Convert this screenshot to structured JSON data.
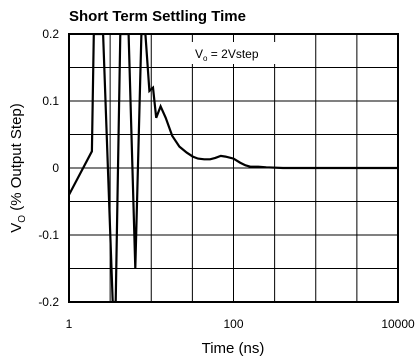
{
  "chart_data": {
    "type": "line",
    "title": "Short Term Settling Time",
    "xlabel": "Time (ns)",
    "ylabel_main": "V",
    "ylabel_sub": "O",
    "ylabel_rest": " (% Output Step)",
    "x_scale": "log",
    "xlim": [
      1,
      10000
    ],
    "ylim": [
      -0.2,
      0.2
    ],
    "x_ticks": [
      1,
      100,
      10000
    ],
    "x_tick_labels": [
      "1",
      "100",
      "10000"
    ],
    "y_ticks": [
      0.2,
      0.1,
      0,
      -0.1,
      -0.2
    ],
    "y_tick_labels": [
      "0.2",
      "0.1",
      "0",
      "-0.1",
      "-0.2"
    ],
    "grid": true,
    "annotation": {
      "main": "V",
      "sub": "o",
      "rest": " = 2Vstep"
    },
    "series": [
      {
        "color": "#000000",
        "x": [
          1,
          1.9,
          2.0,
          2.6,
          3.4,
          3.7,
          4.2,
          5.3,
          6.4,
          7.6,
          8.5,
          9.5,
          10.5,
          11.5,
          13,
          15,
          18,
          22,
          27,
          32,
          37,
          44,
          52,
          60,
          70,
          80,
          100,
          120,
          140,
          160,
          200,
          250,
          400,
          700,
          1000,
          3000,
          10000
        ],
        "y": [
          -0.04,
          0.025,
          0.2,
          0.2,
          -0.2,
          -0.2,
          0.2,
          0.2,
          -0.15,
          0.2,
          0.2,
          0.115,
          0.12,
          0.075,
          0.092,
          0.075,
          0.048,
          0.032,
          0.023,
          0.017,
          0.014,
          0.013,
          0.013,
          0.015,
          0.018,
          0.017,
          0.014,
          0.008,
          0.004,
          0.002,
          0.002,
          0.001,
          0.0,
          0.0,
          0.0,
          0.0,
          0.0
        ]
      }
    ]
  }
}
